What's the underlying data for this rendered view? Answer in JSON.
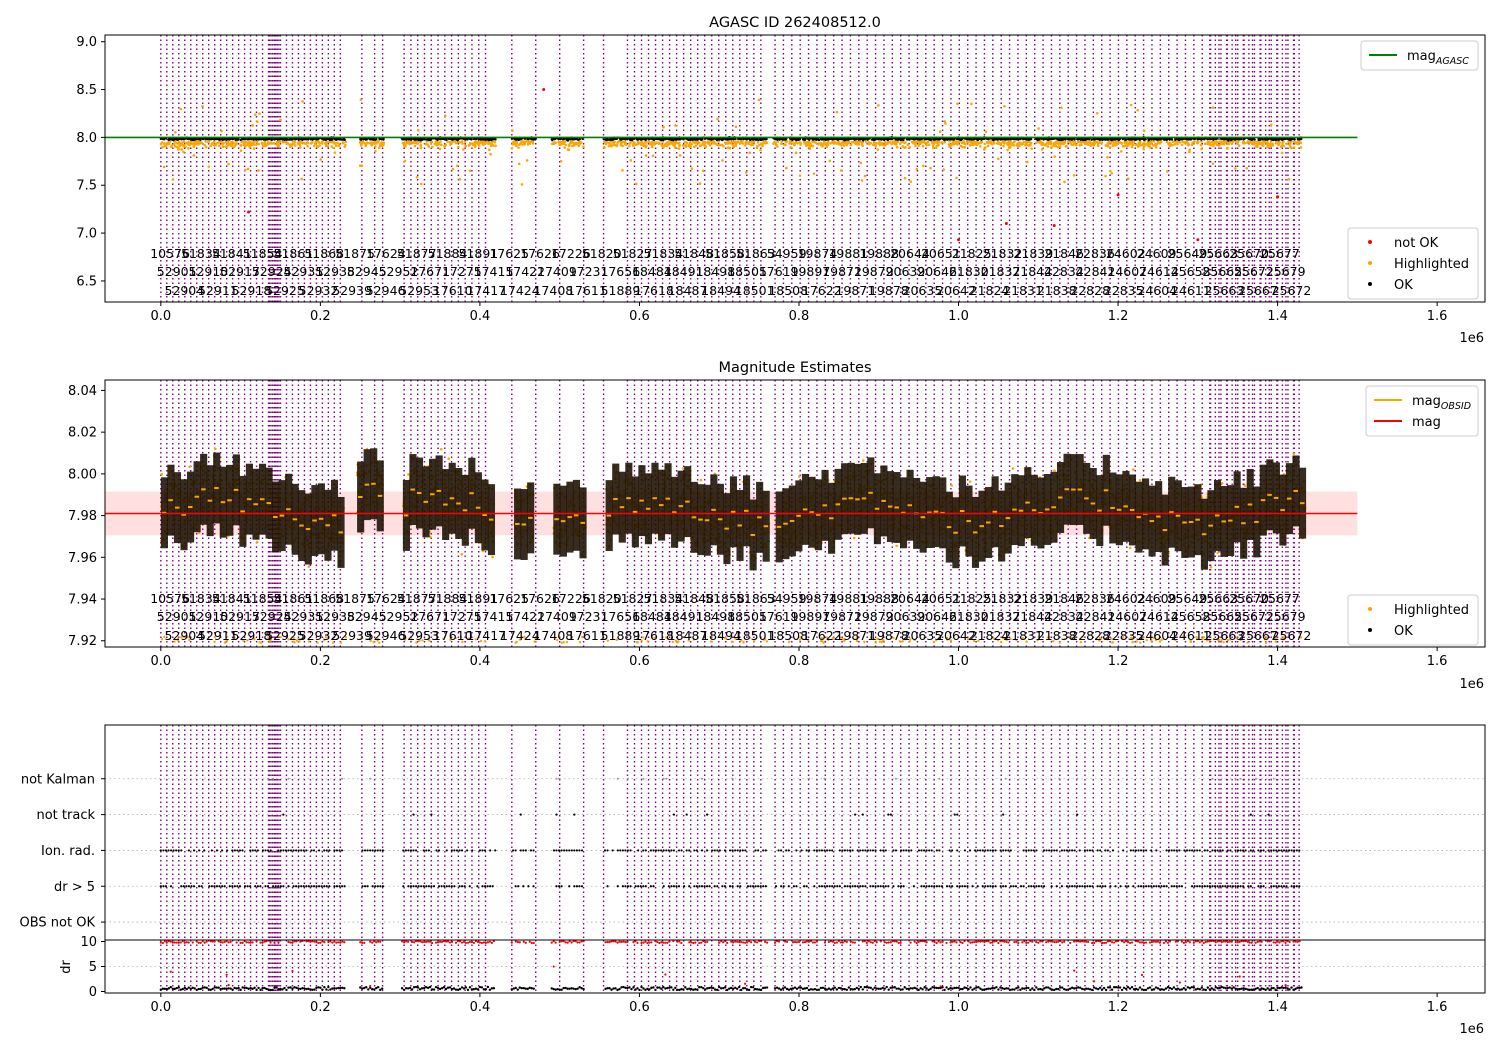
{
  "chart_data": [
    {
      "type": "scatter",
      "title": "AGASC ID 262408512.0",
      "xlabel": "",
      "ylabel": "",
      "x_exponent": "1e6",
      "xlim": [
        -0.07,
        1.66
      ],
      "ylim": [
        6.28,
        9.07
      ],
      "xticks": [
        0.0,
        0.2,
        0.4,
        0.6,
        0.8,
        1.0,
        1.2,
        1.4,
        1.6
      ],
      "xtick_labels": [
        "0.0",
        "0.2",
        "0.4",
        "0.6",
        "0.8",
        "1.0",
        "1.2",
        "1.4",
        "1.6"
      ],
      "yticks": [
        6.5,
        7.0,
        7.5,
        8.0,
        8.5,
        9.0
      ],
      "ytick_labels": [
        "6.5",
        "7.0",
        "7.5",
        "8.0",
        "8.5",
        "9.0"
      ],
      "reference_line": {
        "name": "mag_AGASC",
        "y": 8.0,
        "color": "#008000",
        "x_range": [
          -0.07,
          1.5
        ]
      },
      "series": [
        {
          "name": "not OK",
          "color": "#ff0000"
        },
        {
          "name": "Highlighted",
          "color": "#ffa500"
        },
        {
          "name": "OK",
          "color": "#000000"
        }
      ],
      "legend": [
        {
          "text": "mag",
          "sub": "AGASC",
          "color": "#008000",
          "kind": "line",
          "placement": "top-right"
        },
        {
          "text": "not OK",
          "color": "#ff0000",
          "kind": "dot",
          "placement": "bottom-right"
        },
        {
          "text": "Highlighted",
          "color": "#ffa500",
          "kind": "dot",
          "placement": "bottom-right"
        },
        {
          "text": "OK",
          "color": "#000000",
          "kind": "dot",
          "placement": "bottom-right"
        }
      ],
      "grid": false
    },
    {
      "type": "scatter",
      "title": "Magnitude Estimates",
      "xlabel": "",
      "ylabel": "",
      "x_exponent": "1e6",
      "xlim": [
        -0.07,
        1.66
      ],
      "ylim": [
        7.917,
        8.045
      ],
      "xticks": [
        0.0,
        0.2,
        0.4,
        0.6,
        0.8,
        1.0,
        1.2,
        1.4,
        1.6
      ],
      "xtick_labels": [
        "0.0",
        "0.2",
        "0.4",
        "0.6",
        "0.8",
        "1.0",
        "1.2",
        "1.4",
        "1.6"
      ],
      "yticks": [
        7.92,
        7.94,
        7.96,
        7.98,
        8.0,
        8.02,
        8.04
      ],
      "ytick_labels": [
        "7.92",
        "7.94",
        "7.96",
        "7.98",
        "8.00",
        "8.02",
        "8.04"
      ],
      "reference_line": {
        "name": "mag",
        "y": 7.981,
        "band": [
          7.9705,
          7.9915
        ],
        "color": "#ff0000",
        "x_range": [
          -0.07,
          1.5
        ]
      },
      "series": [
        {
          "name": "Highlighted",
          "color": "#ffa500"
        },
        {
          "name": "OK",
          "color": "#000000"
        },
        {
          "name": "mag_OBSID",
          "color": "#ffa500",
          "kind": "segments"
        }
      ],
      "legend": [
        {
          "text": "mag",
          "sub": "OBSID",
          "color": "#ffa500",
          "kind": "line",
          "placement": "top-right"
        },
        {
          "text": "mag",
          "sub": "",
          "color": "#ff0000",
          "kind": "line",
          "placement": "top-right"
        },
        {
          "text": "Highlighted",
          "color": "#ffa500",
          "kind": "dot",
          "placement": "bottom-right"
        },
        {
          "text": "OK",
          "color": "#000000",
          "kind": "dot",
          "placement": "bottom-right"
        }
      ],
      "grid": false
    },
    {
      "type": "scatter",
      "title": "",
      "xlabel": "",
      "ylabel": "",
      "xlim": [
        -0.07,
        1.66
      ],
      "yticks": [
        0,
        1,
        2,
        3,
        4,
        5
      ],
      "ytick_labels": [
        "OBS not OK",
        "dr > 5",
        "Ion. rad.",
        "not track",
        "not Kalman",
        ""
      ],
      "ylim": [
        -0.5,
        5.5
      ],
      "grid": true
    },
    {
      "type": "scatter",
      "title": "",
      "xlabel": "",
      "ylabel": "dr",
      "x_exponent": "1e6",
      "xlim": [
        -0.07,
        1.66
      ],
      "ylim": [
        -0.3,
        10.3
      ],
      "xticks": [
        0.0,
        0.2,
        0.4,
        0.6,
        0.8,
        1.0,
        1.2,
        1.4,
        1.6
      ],
      "xtick_labels": [
        "0.0",
        "0.2",
        "0.4",
        "0.6",
        "0.8",
        "1.0",
        "1.2",
        "1.4",
        "1.6"
      ],
      "yticks": [
        0,
        5,
        10
      ],
      "ytick_labels": [
        "0",
        "5",
        "10"
      ],
      "grid": true
    }
  ],
  "obsid_labels": {
    "row1": [
      "10576",
      "51834",
      "51841",
      "51854",
      "51861",
      "51868",
      "51875",
      "17624",
      "51877",
      "51884",
      "51891",
      "17625",
      "17626",
      "17226",
      "51820",
      "51827",
      "51834",
      "51848",
      "51858",
      "51863",
      "54959",
      "19874",
      "19881",
      "19888",
      "20644",
      "20651",
      "21825",
      "21832",
      "21839",
      "21846",
      "22836",
      "24602",
      "24609",
      "25649",
      "25663",
      "25670",
      "25677"
    ],
    "row2": [
      "52901",
      "52910",
      "52917",
      "52924",
      "52931",
      "52938",
      "52945",
      "52952",
      "17671",
      "17275",
      "17415",
      "17422",
      "17409",
      "17231",
      "17656",
      "18484",
      "18491",
      "18498",
      "18505",
      "17619",
      "19897",
      "19872",
      "19879",
      "20639",
      "20646",
      "21830",
      "21837",
      "21844",
      "22834",
      "22841",
      "24607",
      "24614",
      "25658",
      "25665",
      "25672",
      "25679"
    ],
    "row3": [
      "52904",
      "52911",
      "52918",
      "52925",
      "52932",
      "52939",
      "52946",
      "52953",
      "17610",
      "17417",
      "17424",
      "17408",
      "17611",
      "51889",
      "17618",
      "18487",
      "18494",
      "18501",
      "18508",
      "17622",
      "19871",
      "19878",
      "20635",
      "20642",
      "21824",
      "21831",
      "21838",
      "22828",
      "22835",
      "24604",
      "24611",
      "25663",
      "25667",
      "25672"
    ]
  }
}
